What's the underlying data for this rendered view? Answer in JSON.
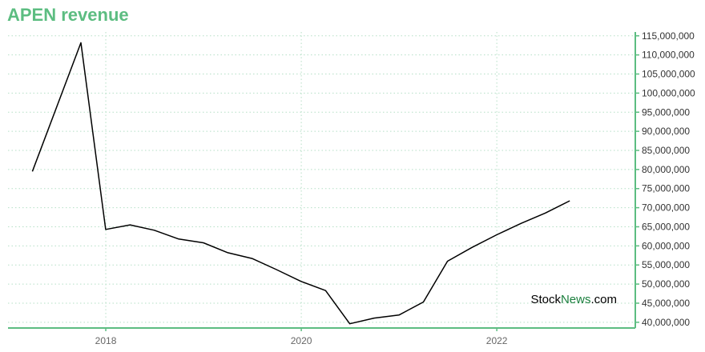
{
  "colors": {
    "accent": "#5cbd81",
    "line": "#000000",
    "grid": "#b5dfc6",
    "watermark_dark": "#000000",
    "watermark_green": "#1b7f3e"
  },
  "watermark": {
    "part1": "Stock",
    "part2": "News",
    "part3": ".com"
  },
  "chart_data": {
    "type": "line",
    "title": "APEN revenue",
    "xlabel": "",
    "ylabel": "",
    "x_ticks": [
      "2018",
      "2020",
      "2022"
    ],
    "y_ticks": [
      "40,000,000",
      "45,000,000",
      "50,000,000",
      "55,000,000",
      "60,000,000",
      "65,000,000",
      "70,000,000",
      "75,000,000",
      "80,000,000",
      "85,000,000",
      "90,000,000",
      "95,000,000",
      "100,000,000",
      "105,000,000",
      "110,000,000",
      "115,000,000"
    ],
    "ylim": [
      38500000,
      116000000
    ],
    "xlim": [
      "2017-01",
      "2023-06"
    ],
    "y_axis_position": "right",
    "grid": true,
    "series": [
      {
        "x": [
          "2017-03-31",
          "2017-09-30",
          "2017-12-31",
          "2018-03-31",
          "2018-06-30",
          "2018-09-30",
          "2018-12-31",
          "2019-03-31",
          "2019-06-30",
          "2019-09-30",
          "2019-12-31",
          "2020-03-31",
          "2020-06-30",
          "2020-09-30",
          "2020-12-31",
          "2021-03-31",
          "2021-06-30",
          "2021-09-30",
          "2021-12-31",
          "2022-03-31",
          "2022-06-30",
          "2022-09-30"
        ],
        "values": [
          79500000,
          113200000,
          64300000,
          65500000,
          64100000,
          61800000,
          60800000,
          58200000,
          56700000,
          53800000,
          50700000,
          48300000,
          39600000,
          41100000,
          41900000,
          45300000,
          56000000,
          59600000,
          62900000,
          65900000,
          68600000,
          71800000
        ]
      }
    ]
  }
}
